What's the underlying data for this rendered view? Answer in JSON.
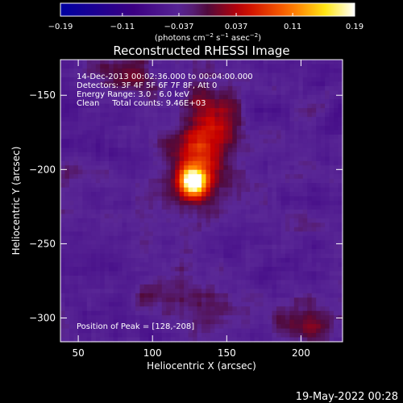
{
  "chart_data": {
    "type": "heatmap",
    "title": "Reconstructed RHESSI Image",
    "xlabel": "Heliocentric X (arcsec)",
    "ylabel": "Heliocentric Y (arcsec)",
    "xlim": [
      38,
      228
    ],
    "ylim": [
      -316,
      -126
    ],
    "x_ticks": [
      50,
      100,
      150,
      200
    ],
    "y_ticks": [
      -150,
      -200,
      -250,
      -300
    ],
    "colorbar": {
      "range": [
        -0.19,
        0.19
      ],
      "ticks": [
        -0.19,
        -0.11,
        -0.037,
        0.037,
        0.11,
        0.19
      ],
      "tick_labels": [
        "−0.19",
        "−0.11",
        "−0.037",
        "0.037",
        "0.11",
        "0.19"
      ],
      "unit_prefix": "(photons cm",
      "unit_sup1": "−2",
      "unit_mid": " s",
      "unit_sup2": "−1",
      "unit_mid2": " asec",
      "unit_sup3": "−2",
      "unit_suffix": ")"
    },
    "annotations": {
      "line1": "14-Dec-2013 00:02:36.000 to 00:04:00.000",
      "line2": "Detectors: 3F 4F 5F 6F 7F 8F, Att 0",
      "line3": "Energy Range: 3.0 - 6.0 keV",
      "line4": "Clean     Total counts: 9.46E+03",
      "peak": "Position of Peak = [128,-208]"
    },
    "peak": [
      128,
      -208
    ],
    "timestamp": "19-May-2022 00:28",
    "sources": [
      {
        "x": 127,
        "y": -208,
        "amp": 0.22,
        "sx": 6,
        "sy": 6
      },
      {
        "x": 130,
        "y": -200,
        "amp": 0.07,
        "sx": 16,
        "sy": 20
      },
      {
        "x": 135,
        "y": -180,
        "amp": 0.05,
        "sx": 12,
        "sy": 22
      },
      {
        "x": 145,
        "y": -160,
        "amp": 0.035,
        "sx": 12,
        "sy": 14
      },
      {
        "x": 80,
        "y": -135,
        "amp": 0.04,
        "sx": 14,
        "sy": 10
      },
      {
        "x": 200,
        "y": -305,
        "amp": 0.05,
        "sx": 14,
        "sy": 10
      },
      {
        "x": 140,
        "y": -295,
        "amp": 0.04,
        "sx": 14,
        "sy": 12
      },
      {
        "x": 105,
        "y": -285,
        "amp": 0.025,
        "sx": 14,
        "sy": 12
      },
      {
        "x": 205,
        "y": -230,
        "amp": 0.02,
        "sx": 10,
        "sy": 14
      },
      {
        "x": 95,
        "y": -225,
        "amp": 0.018,
        "sx": 12,
        "sy": 14
      }
    ]
  }
}
